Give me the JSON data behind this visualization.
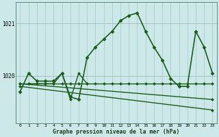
{
  "bg_color": "#cde8e8",
  "line_color": "#1a5c1a",
  "grid_color": "#aacccc",
  "xlabel_label": "Graphe pression niveau de la mer (hPa)",
  "xlim": [
    -0.5,
    23.5
  ],
  "ylim": [
    1019.1,
    1021.4
  ],
  "yticks": [
    1020,
    1021
  ],
  "xticks": [
    0,
    1,
    2,
    3,
    4,
    5,
    6,
    7,
    8,
    9,
    10,
    11,
    12,
    13,
    14,
    15,
    16,
    17,
    18,
    19,
    20,
    21,
    22,
    23
  ],
  "lines": [
    {
      "x": [
        0,
        1,
        2,
        3,
        4,
        5,
        6,
        7,
        8,
        9,
        10,
        11,
        12,
        13,
        14,
        15,
        16,
        17,
        18,
        19,
        20,
        21,
        22,
        23
      ],
      "y": [
        1019.7,
        1020.05,
        1019.9,
        1019.9,
        1019.9,
        1020.05,
        1019.6,
        1019.55,
        1020.35,
        1020.55,
        1020.7,
        1020.85,
        1021.05,
        1021.15,
        1021.2,
        1020.85,
        1020.55,
        1020.3,
        1019.95,
        1019.8,
        1019.8,
        1020.85,
        1020.55,
        1020.05
      ],
      "marker": "D",
      "ms": 2.5,
      "lw": 1.2
    },
    {
      "x": [
        0,
        1,
        2,
        3,
        4,
        5,
        6,
        7,
        8,
        9,
        10,
        11,
        12,
        13,
        14,
        15,
        16,
        17,
        18,
        19,
        20,
        21,
        22,
        23
      ],
      "y": [
        1019.85,
        1019.85,
        1019.85,
        1019.85,
        1019.85,
        1019.85,
        1019.85,
        1019.85,
        1019.85,
        1019.85,
        1019.85,
        1019.85,
        1019.85,
        1019.85,
        1019.85,
        1019.85,
        1019.85,
        1019.85,
        1019.85,
        1019.85,
        1019.85,
        1019.85,
        1019.85,
        1019.85
      ],
      "marker": "D",
      "ms": 2.0,
      "lw": 1.0
    },
    {
      "x": [
        0,
        23
      ],
      "y": [
        1019.85,
        1019.55
      ],
      "marker": "D",
      "ms": 2.0,
      "lw": 1.0
    },
    {
      "x": [
        0,
        23
      ],
      "y": [
        1019.8,
        1019.35
      ],
      "marker": "D",
      "ms": 2.0,
      "lw": 1.0
    },
    {
      "x": [
        1,
        2,
        3,
        4,
        5,
        6,
        7,
        8
      ],
      "y": [
        1019.85,
        1019.85,
        1019.85,
        1019.85,
        1020.05,
        1019.55,
        1020.05,
        1019.85
      ],
      "marker": "D",
      "ms": 2.0,
      "lw": 1.0
    }
  ]
}
